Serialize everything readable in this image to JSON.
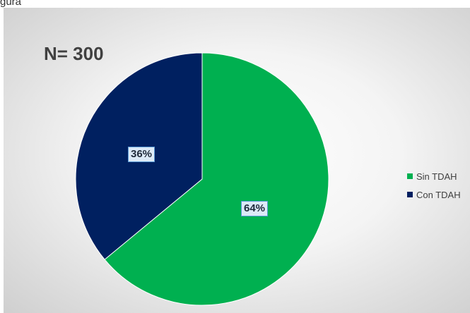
{
  "top_fragment_text": "gura",
  "chart_data": {
    "type": "pie",
    "title": "N= 300",
    "categories": [
      "Sin TDAH",
      "Con TDAH"
    ],
    "values": [
      64,
      36
    ],
    "data_labels": [
      "64%",
      "36%"
    ],
    "colors": [
      "#00b050",
      "#002060"
    ],
    "legend_position": "right"
  }
}
